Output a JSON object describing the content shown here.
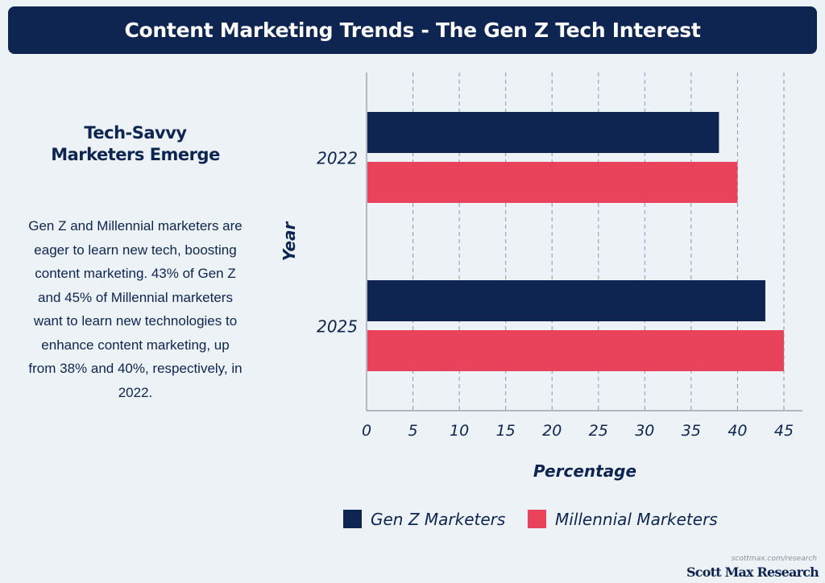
{
  "header": {
    "title": "Content Marketing Trends - The Gen Z Tech Interest"
  },
  "sidebar": {
    "heading": "Tech-Savvy Marketers Emerge",
    "body": "Gen Z and Millennial marketers are eager to learn new tech, boosting content marketing. 43% of Gen Z and 45% of Millennial marketers want to learn new technologies to enhance content marketing, up from 38% and 40%, respectively, in 2022."
  },
  "chart_data": {
    "type": "bar",
    "orientation": "horizontal",
    "categories": [
      "2022",
      "2025"
    ],
    "series": [
      {
        "name": "Gen Z Marketers",
        "values": [
          38,
          43
        ],
        "color": "#0d2550"
      },
      {
        "name": "Millennial Marketers",
        "values": [
          40,
          45
        ],
        "color": "#e8435a"
      }
    ],
    "xlabel": "Percentage",
    "ylabel": "Year",
    "xlim": [
      0,
      47
    ],
    "xticks": [
      "0",
      "5",
      "10",
      "15",
      "20",
      "25",
      "30",
      "35",
      "40",
      "45"
    ],
    "grid": "vertical dashed",
    "legend": "bottom"
  },
  "footer": {
    "url": "scottmax.com/research",
    "brand": "Scott Max Research"
  }
}
